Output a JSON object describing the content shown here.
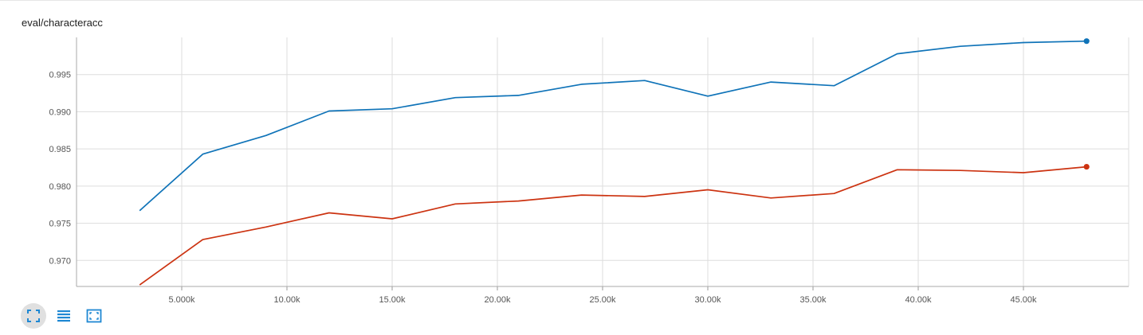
{
  "card": {
    "title": "eval/characteracc"
  },
  "toolbar": {
    "buttons": [
      {
        "name": "expand",
        "icon": "fullscreen-icon",
        "active": true
      },
      {
        "name": "data",
        "icon": "list-icon",
        "active": false
      },
      {
        "name": "fit",
        "icon": "fit-domain-icon",
        "active": false
      }
    ]
  },
  "colors": {
    "series1": "#0f73b8",
    "series2": "#cc3311",
    "grid": "#dddddd",
    "icon": "#1f88d3"
  },
  "chart_data": {
    "type": "line",
    "title": "eval/characteracc",
    "xlabel": "",
    "ylabel": "",
    "xlim": [
      0,
      50000
    ],
    "ylim": [
      0.9665,
      1.0
    ],
    "x_ticks": [
      5000,
      10000,
      15000,
      20000,
      25000,
      30000,
      35000,
      40000,
      45000
    ],
    "x_tick_labels": [
      "5.000k",
      "10.00k",
      "15.00k",
      "20.00k",
      "25.00k",
      "30.00k",
      "35.00k",
      "40.00k",
      "45.00k"
    ],
    "y_ticks": [
      0.97,
      0.975,
      0.98,
      0.985,
      0.99,
      0.995
    ],
    "y_tick_labels": [
      "0.970",
      "0.975",
      "0.980",
      "0.985",
      "0.990",
      "0.995"
    ],
    "grid": true,
    "x": [
      3000,
      6000,
      9000,
      12000,
      15000,
      18000,
      21000,
      24000,
      27000,
      30000,
      33000,
      36000,
      39000,
      42000,
      45000,
      48000
    ],
    "series": [
      {
        "color": "#0f73b8",
        "values": [
          0.9767,
          0.9843,
          0.9868,
          0.9901,
          0.9904,
          0.9919,
          0.9922,
          0.9937,
          0.9942,
          0.9921,
          0.994,
          0.9935,
          0.9978,
          0.9988,
          0.9993,
          0.9995
        ]
      },
      {
        "color": "#cc3311",
        "values": [
          0.9667,
          0.9728,
          0.9745,
          0.9764,
          0.9756,
          0.9776,
          0.978,
          0.9788,
          0.9786,
          0.9795,
          0.9784,
          0.979,
          0.9822,
          0.9821,
          0.9818,
          0.9826
        ]
      }
    ]
  }
}
